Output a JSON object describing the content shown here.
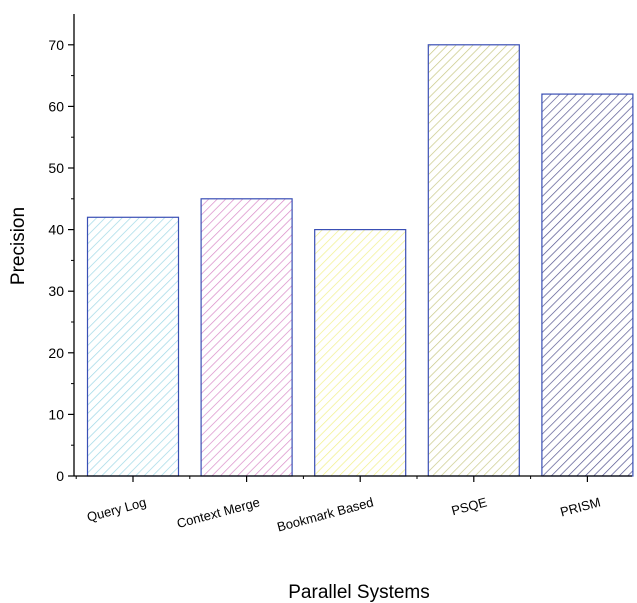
{
  "chart_data": {
    "type": "bar",
    "xlabel": "Parallel Systems",
    "ylabel": "Precision",
    "categories": [
      "Query Log",
      "Context Merge",
      "Bookmark Based",
      "PSQE",
      "PRISM"
    ],
    "values": [
      42,
      45,
      40,
      70,
      62
    ],
    "ylim": [
      0,
      75
    ],
    "yticks": [
      0,
      10,
      20,
      30,
      40,
      50,
      60,
      70
    ],
    "grid": false,
    "legend": "none",
    "bar_outline_color": "#3a4fb5",
    "bar_hatch_colors": [
      "#9fd8e6",
      "#d98bc8",
      "#f2f08a",
      "#c9c987",
      "#555590"
    ]
  }
}
